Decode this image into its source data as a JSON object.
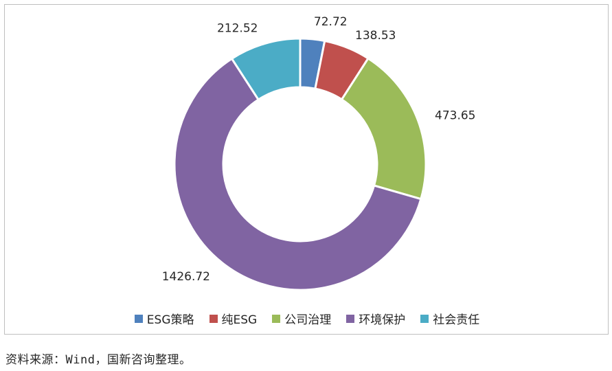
{
  "chart_data": {
    "type": "pie",
    "donut": true,
    "title": "",
    "series": [
      {
        "name": "ESG策略",
        "value": 72.72,
        "label": "72.72",
        "color": "#4f81bd"
      },
      {
        "name": "纯ESG",
        "value": 138.53,
        "label": "138.53",
        "color": "#c0504d"
      },
      {
        "name": "公司治理",
        "value": 473.65,
        "label": "473.65",
        "color": "#9bbb59"
      },
      {
        "name": "环境保护",
        "value": 1426.72,
        "label": "1426.72",
        "color": "#8064a2"
      },
      {
        "name": "社会责任",
        "value": 212.52,
        "label": "212.52",
        "color": "#4bacc6"
      }
    ],
    "legend_position": "bottom",
    "start_angle": "12 o'clock",
    "direction": "clockwise"
  },
  "source_note": "资料来源：Wind，国新咨询整理。"
}
